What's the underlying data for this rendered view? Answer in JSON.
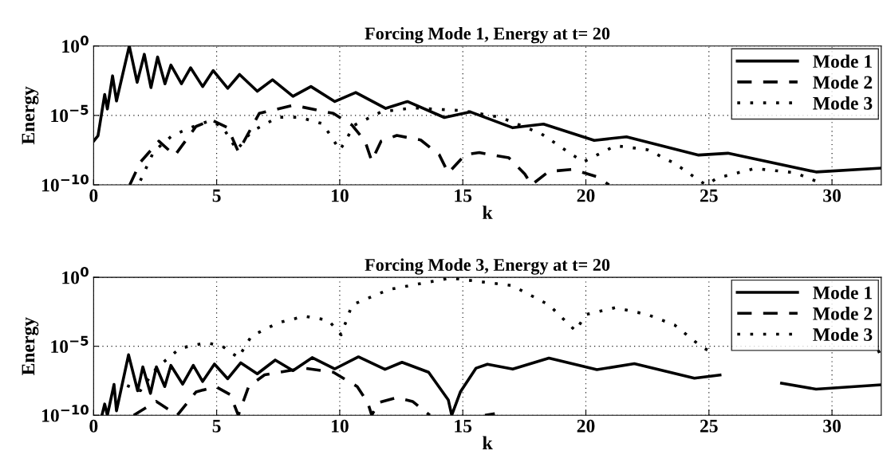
{
  "chart_data": [
    {
      "type": "line",
      "title": "Forcing Mode 1, Energy at t= 20",
      "xlabel": "k",
      "ylabel": "Energy",
      "log": "y",
      "grid": true,
      "legend": "top right",
      "xlim": [
        0,
        32
      ],
      "xticks": [
        0,
        5,
        10,
        15,
        20,
        25,
        30
      ],
      "ylim": [
        1e-10,
        1
      ],
      "yticks": [
        {
          "value": 1e-10,
          "label": "10$^{−10}$"
        },
        {
          "value": 1e-05,
          "label": "10$^{−5}$"
        },
        {
          "value": 1,
          "label": "10$^{0}$"
        }
      ],
      "series": [
        {
          "name": "Mode 1",
          "color": "#000000",
          "line_style": "solid",
          "x": [
            0,
            0.18,
            0.45,
            0.56,
            0.77,
            0.93,
            1.45,
            1.77,
            2.06,
            2.33,
            2.6,
            2.9,
            3.14,
            3.57,
            3.94,
            4.43,
            4.86,
            5.45,
            5.93,
            6.65,
            7.27,
            8.1,
            8.83,
            9.8,
            10.65,
            11.87,
            12.75,
            14.25,
            15.3,
            17.03,
            18.28,
            20.34,
            21.65,
            24.58,
            25.77,
            29.35,
            32
          ],
          "values": [
            1.4e-07,
            3.5e-07,
            0.00032,
            2.9e-05,
            0.0071,
            0.00011,
            1,
            0.0024,
            0.25,
            0.001,
            0.16,
            0.0019,
            0.042,
            0.0019,
            0.027,
            0.0012,
            0.017,
            0.00089,
            0.0089,
            0.00055,
            0.0037,
            0.00024,
            0.0012,
            0.0001,
            0.00045,
            3.2e-05,
            0.0001,
            7.1e-06,
            1.8e-05,
            1.3e-06,
            2.4e-06,
            1.6e-07,
            2.9e-07,
            1.4e-08,
            1.9e-08,
            8.5e-10,
            1.6e-09
          ]
        },
        {
          "name": "Mode 2",
          "color": "#000000",
          "line_style": "dashed",
          "x": [
            1.47,
            1.9,
            2.65,
            3.3,
            4.16,
            4.8,
            5.45,
            5.88,
            6.73,
            8.13,
            9.74,
            10.5,
            11.03,
            11.3,
            11.68,
            12.32,
            13.29,
            14.04,
            14.41,
            15.1,
            15.67,
            16.87,
            17.52,
            17.79,
            18.5,
            19.47,
            20.45,
            20.94
          ],
          "values": [
            1e-10,
            4.3e-09,
            1.4e-07,
            1.3e-08,
            1.6e-06,
            4.6e-06,
            1.3e-06,
            2.5e-08,
            1.4e-05,
            5.4e-05,
            1.4e-05,
            2e-06,
            1.4e-07,
            5.2e-09,
            1.4e-07,
            3.6e-07,
            1.7e-07,
            1.5e-08,
            7.2e-10,
            1.5e-08,
            2.1e-08,
            8.9e-09,
            6e-10,
            1e-10,
            9.3e-10,
            1.3e-09,
            3.8e-10,
            1e-10
          ]
        },
        {
          "name": "Mode 3",
          "color": "#000000",
          "line_style": "dotted",
          "x": [
            1.9,
            2.44,
            3.19,
            3.94,
            4.69,
            5.23,
            5.82,
            6.41,
            7.49,
            8.35,
            9.31,
            10.01,
            10.6,
            11.68,
            12.97,
            15,
            16.54,
            18.17,
            19.47,
            19.9,
            21.2,
            22.5,
            23.6,
            24.7,
            24.9,
            25.34,
            26.86,
            28.48,
            29.57
          ],
          "values": [
            2e-10,
            2.5e-08,
            3.5e-07,
            1.3e-06,
            4e-06,
            1.6e-06,
            3.2e-08,
            6.8e-07,
            7.4e-06,
            7.4e-06,
            2.5e-06,
            3.2e-08,
            2e-06,
            1.8e-05,
            3.5e-05,
            2.2e-05,
            7.2e-06,
            5e-07,
            1.4e-08,
            4.5e-09,
            6.6e-08,
            3.4e-08,
            3.6e-09,
            1.6e-10,
            1e-10,
            3.1e-10,
            1.5e-09,
            7.6e-10,
            1.3e-10
          ]
        }
      ]
    },
    {
      "type": "line",
      "title": "Forcing Mode 3, Energy at t= 20",
      "xlabel": "k",
      "ylabel": "Energy",
      "log": "y",
      "grid": true,
      "legend": "top right",
      "xlim": [
        0,
        32
      ],
      "xticks": [
        0,
        5,
        10,
        15,
        20,
        25,
        30
      ],
      "ylim": [
        1e-10,
        1
      ],
      "yticks": [
        {
          "value": 1e-10,
          "label": "10$^{−10}$"
        },
        {
          "value": 1e-05,
          "label": "10$^{−5}$"
        },
        {
          "value": 1,
          "label": "10$^{0}$"
        }
      ],
      "series": [
        {
          "name": "Mode 1",
          "color": "#000000",
          "line_style": "solid",
          "x": [
            0.34,
            0.45,
            0.56,
            0.83,
            0.93,
            1.42,
            1.79,
            2.0,
            2.31,
            2.55,
            2.89,
            3.14,
            3.62,
            4.05,
            4.43,
            4.91,
            5.45,
            5.98,
            6.65,
            7.38,
            8.1,
            8.88,
            9.8,
            10.76,
            11.84,
            12.53,
            13.61,
            14.41,
            14.55,
            14.9,
            15.54,
            16.0,
            17.03,
            18.5,
            20.45,
            21.97,
            24.41,
            25.45,
            26.7,
            27.95,
            29.35,
            32
          ],
          "values": [
            1e-10,
            6.5e-10,
            1e-10,
            1.7e-08,
            2.1e-10,
            2.4e-06,
            6e-09,
            3.2e-07,
            3.8e-09,
            3.2e-07,
            1.2e-08,
            4.1e-07,
            1.8e-08,
            4.1e-07,
            2.8e-08,
            5.1e-07,
            4.4e-08,
            6.3e-07,
            1e-07,
            1e-06,
            1.7e-07,
            1.5e-06,
            2.3e-07,
            1.7e-06,
            2.1e-07,
            6.9e-07,
            1.3e-07,
            1.3e-09,
            1e-10,
            4.8e-09,
            2.6e-07,
            5e-07,
            2.2e-07,
            1.4e-06,
            2e-07,
            5.5e-07,
            4.8e-08,
            8.3e-08,
            null,
            2.1e-08,
            7.8e-09,
            1.6e-08
          ]
        },
        {
          "name": "Mode 2",
          "color": "#000000",
          "line_style": "dashed",
          "x": [
            1.63,
            2.55,
            3.4,
            4.16,
            4.96,
            5.55,
            5.88,
            6.3,
            6.95,
            8.56,
            9.74,
            10.71,
            11.14,
            11.3,
            11.57,
            12.32,
            12.96,
            13.66,
            14.8,
            15.9,
            16.3
          ],
          "values": [
            1e-10,
            1e-09,
            1e-10,
            4.8e-09,
            1.2e-08,
            3.1e-09,
            1e-10,
            1.2e-08,
            8.5e-08,
            2.6e-07,
            1.3e-07,
            1.2e-08,
            8.1e-10,
            1e-10,
            8.1e-10,
            1.9e-09,
            1e-09,
            1e-10,
            null,
            1e-10,
            1.3e-10
          ]
        },
        {
          "name": "Mode 3",
          "color": "#000000",
          "line_style": "dotted",
          "x": [
            1.36,
            1.9,
            2.55,
            3.51,
            4.59,
            5.23,
            5.88,
            6.41,
            7.49,
            8.56,
            9.53,
            10.06,
            10.5,
            12,
            14.5,
            17,
            18.5,
            19.58,
            20,
            21.2,
            22.5,
            23.6,
            24.7,
            25,
            28,
            31.85,
            32
          ],
          "values": [
            1.4e-08,
            6e-09,
            2.6e-07,
            7.2e-06,
            1.8e-05,
            1e-05,
            1.5e-06,
            5.4e-05,
            0.0005,
            0.0015,
            0.00078,
            6.8e-05,
            0.01,
            0.13,
            0.89,
            0.25,
            0.01,
            0.00013,
            0.002,
            0.0063,
            0.002,
            0.00035,
            9.1e-06,
            4.7e-06,
            null,
            3.7e-06,
            5e-06
          ]
        }
      ]
    }
  ]
}
